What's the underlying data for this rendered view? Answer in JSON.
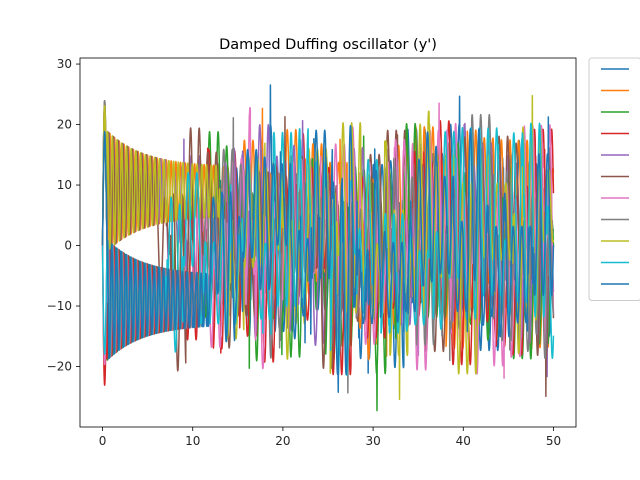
{
  "chart_data": {
    "type": "line",
    "title": "Damped Duffing oscillator (y')",
    "xlabel": "",
    "ylabel": "",
    "xlim": [
      -2.5,
      52.5
    ],
    "ylim": [
      -30,
      31
    ],
    "xticks": [
      0,
      10,
      20,
      30,
      40,
      50
    ],
    "yticks": [
      -20,
      -10,
      0,
      10,
      20,
      30
    ],
    "xtick_labels": [
      "0",
      "10",
      "20",
      "30",
      "40",
      "50"
    ],
    "ytick_labels": [
      "−20",
      "−10",
      "0",
      "10",
      "20",
      "30"
    ],
    "grid": false,
    "legend": {
      "placement": "outside-right-top",
      "entries_labeled": false
    },
    "x_range": [
      0,
      50
    ],
    "series": [
      {
        "color": "#1f77b4",
        "initial_peak": 23,
        "attractor_amplitude_range": [
          6,
          20
        ],
        "period": 0.95,
        "chaos_onset": 12
      },
      {
        "color": "#ff7f0e",
        "initial_peak": 27,
        "attractor_amplitude_range": [
          6,
          22
        ],
        "period": 0.95,
        "chaos_onset": 14
      },
      {
        "color": "#2ca02c",
        "initial_peak": 20,
        "attractor_amplitude_range": [
          6,
          20
        ],
        "period": 0.95,
        "chaos_onset": 8
      },
      {
        "color": "#d62728",
        "initial_peak": -27,
        "attractor_amplitude_range": [
          6,
          21
        ],
        "period": 0.95,
        "chaos_onset": 9
      },
      {
        "color": "#9467bd",
        "initial_peak": 22,
        "attractor_amplitude_range": [
          6,
          20
        ],
        "period": 0.95,
        "chaos_onset": 7
      },
      {
        "color": "#8c564b",
        "initial_peak": 28,
        "attractor_amplitude_range": [
          6,
          22
        ],
        "period": 0.95,
        "chaos_onset": 6
      },
      {
        "color": "#e377c2",
        "initial_peak": -23,
        "attractor_amplitude_range": [
          6,
          24
        ],
        "period": 0.95,
        "chaos_onset": 10
      },
      {
        "color": "#7f7f7f",
        "initial_peak": 28,
        "attractor_amplitude_range": [
          6,
          21
        ],
        "period": 0.95,
        "chaos_onset": 11
      },
      {
        "color": "#bcbd22",
        "initial_peak": 27,
        "attractor_amplitude_range": [
          6,
          23
        ],
        "period": 0.95,
        "chaos_onset": 13
      },
      {
        "color": "#17becf",
        "initial_peak": -21,
        "attractor_amplitude_range": [
          6,
          23
        ],
        "period": 0.95,
        "chaos_onset": 7
      },
      {
        "color": "#1f77b4",
        "initial_peak": 22,
        "attractor_amplitude_range": [
          6,
          23
        ],
        "period": 0.95,
        "chaos_onset": 12
      }
    ]
  }
}
